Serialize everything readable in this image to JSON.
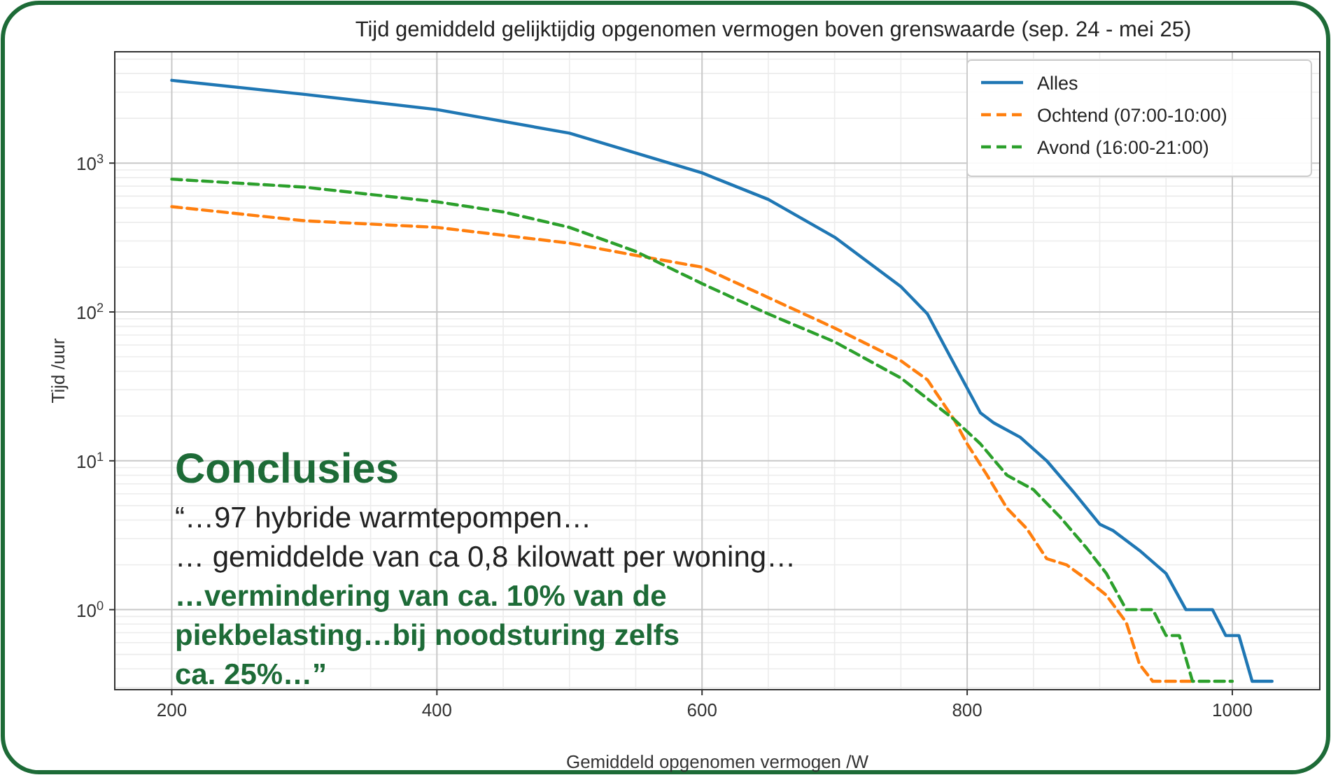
{
  "chart_data": {
    "type": "line",
    "title": "Tijd gemiddeld gelijktijdig opgenomen vermogen boven grenswaarde (sep. 24 - mei 25)",
    "xlabel": "Gemiddeld opgenomen vermogen /W",
    "ylabel": "Tijd /uur",
    "log": "y",
    "grid": true,
    "legend": "top right",
    "xlim": [
      157,
      1066
    ],
    "xticks": [
      200,
      400,
      600,
      800,
      1000
    ],
    "ylim": [
      0.29,
      5600
    ],
    "yticks": [
      {
        "value": 1,
        "label": "10$^{0}$"
      },
      {
        "value": 10,
        "label": "10$^{1}$"
      },
      {
        "value": 100,
        "label": "10$^{2}$"
      },
      {
        "value": 1000,
        "label": "10$^{3}$"
      }
    ],
    "series": [
      {
        "name": "Alles",
        "color": "#1f77b4",
        "line_style": "solid",
        "x": [
          200,
          300,
          400,
          500,
          600,
          650,
          700,
          750,
          770,
          790,
          810,
          820,
          840,
          860,
          880,
          900,
          910,
          930,
          950,
          965,
          985,
          995,
          1005,
          1015,
          1030
        ],
        "values": [
          3600,
          2900,
          2290,
          1590,
          860,
          570,
          318,
          148,
          97,
          45,
          21,
          18,
          14.4,
          10,
          6.2,
          3.75,
          3.4,
          2.5,
          1.75,
          1,
          1,
          0.67,
          0.67,
          0.33,
          0.33
        ]
      },
      {
        "name": "Ochtend (07:00-10:00)",
        "color": "#ff7f0e",
        "line_style": "dashed",
        "x": [
          200,
          300,
          400,
          500,
          550,
          600,
          650,
          700,
          750,
          770,
          790,
          800,
          815,
          830,
          845,
          860,
          875,
          890,
          905,
          920,
          930,
          940,
          970
        ],
        "values": [
          510,
          410,
          370,
          290,
          240,
          200,
          125,
          78,
          47,
          35,
          19,
          13,
          8,
          4.8,
          3.5,
          2.2,
          2,
          1.6,
          1.25,
          0.82,
          0.43,
          0.33,
          0.33
        ]
      },
      {
        "name": "Avond (16:00-21:00)",
        "color": "#2ca02c",
        "line_style": "dashed",
        "x": [
          200,
          300,
          400,
          450,
          500,
          550,
          600,
          650,
          700,
          750,
          790,
          810,
          830,
          850,
          870,
          890,
          905,
          920,
          940,
          950,
          960,
          970,
          1000
        ],
        "values": [
          780,
          690,
          550,
          470,
          370,
          255,
          155,
          97,
          63,
          36,
          19,
          13,
          8,
          6.4,
          4.2,
          2.6,
          1.75,
          1,
          1,
          0.67,
          0.67,
          0.33,
          0.33
        ]
      }
    ],
    "annotations": [
      "Conclusies",
      "“…97 hybride warmtepompen…",
      "… gemiddelde van ca 0,8 kilowatt per woning…",
      "…vermindering van ca. 10% van de piekbelasting…bij noodsturing zelfs ca. 25%…”"
    ]
  }
}
